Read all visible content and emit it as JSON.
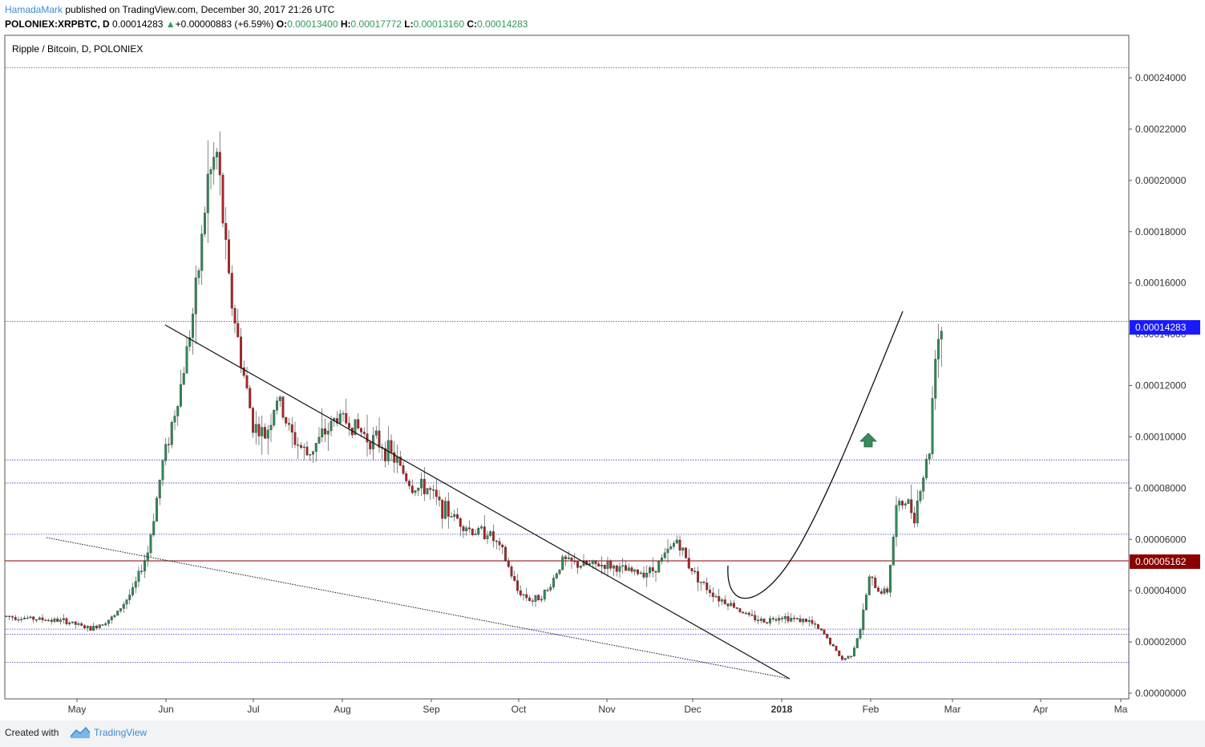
{
  "header": {
    "author": "HamadaMark",
    "published": "published on TradingView.com, December 30, 2017 21:26 UTC",
    "symbol": "POLONIEX:XRPBTC, D",
    "last": "0.00014283",
    "change_arrow": "▲",
    "change": "+0.00000883 (+6.59%)",
    "o_label": "O:",
    "o_value": "0.00013400",
    "h_label": "H:",
    "h_value": "0.00017772",
    "l_label": "L:",
    "l_value": "0.00013160",
    "c_label": "C:",
    "c_value": "0.00014283"
  },
  "footer": {
    "created_with": "Created with",
    "brand": "TradingView",
    "logo_icon": "tradingview-logo-icon"
  },
  "colors": {
    "up_candle": "#2e8b57",
    "down_candle": "#b22222",
    "horizontal_line": "#3b3bb3",
    "resistance_line": "#8b0000",
    "current_price_badge": "#1a1aff",
    "support_badge": "#8b0000",
    "arrow": "#3a8a5a",
    "author": "#3d8bd4"
  },
  "chart_data": {
    "type": "candlestick",
    "title": "Ripple / Bitcoin, D, POLONIEX",
    "x_labels": [
      "May",
      "Jun",
      "Jul",
      "Aug",
      "Sep",
      "Oct",
      "Nov",
      "Dec",
      "2018",
      "Feb",
      "Mar",
      "Apr",
      "Ma"
    ],
    "y_ticks": [
      "0.00024000",
      "0.00022000",
      "0.00020000",
      "0.00018000",
      "0.00016000",
      "0.00014000",
      "0.00012000",
      "0.00010000",
      "0.00008000",
      "0.00006000",
      "0.00004000",
      "0.00002000",
      "0.00000000"
    ],
    "ylim": [
      0,
      0.000245
    ],
    "current_price_label": "0.00014283",
    "support_price_label": "0.00005162",
    "horizontal_levels": [
      0.000244,
      0.000145,
      9.1e-05,
      8.2e-05,
      6.2e-05,
      2.5e-05,
      2.3e-05,
      1.2e-05
    ],
    "resistance_level": 5.162e-05,
    "price_path": [
      [
        0,
        3e-05
      ],
      [
        10,
        2.9e-05
      ],
      [
        20,
        2.8e-05
      ],
      [
        28,
        2.5e-05
      ],
      [
        36,
        3e-05
      ],
      [
        42,
        4e-05
      ],
      [
        47,
        5.5e-05
      ],
      [
        52,
        9e-05
      ],
      [
        58,
        0.00012
      ],
      [
        63,
        0.000155
      ],
      [
        67,
        0.0002
      ],
      [
        70,
        0.00021
      ],
      [
        74,
        0.00016
      ],
      [
        78,
        0.00013
      ],
      [
        82,
        0.000105
      ],
      [
        86,
        0.0001
      ],
      [
        90,
        0.000115
      ],
      [
        95,
        0.0001
      ],
      [
        100,
        9.3e-05
      ],
      [
        105,
        0.0001
      ],
      [
        110,
        0.000108
      ],
      [
        115,
        0.000105
      ],
      [
        120,
        0.0001
      ],
      [
        125,
        9.7e-05
      ],
      [
        130,
        9e-05
      ],
      [
        135,
        8e-05
      ],
      [
        140,
        8e-05
      ],
      [
        145,
        7.2e-05
      ],
      [
        150,
        6.8e-05
      ],
      [
        155,
        6.3e-05
      ],
      [
        160,
        6.3e-05
      ],
      [
        165,
        5.5e-05
      ],
      [
        170,
        4e-05
      ],
      [
        175,
        3.6e-05
      ],
      [
        180,
        4e-05
      ],
      [
        185,
        5.2e-05
      ],
      [
        190,
        5e-05
      ],
      [
        195,
        5e-05
      ],
      [
        200,
        5e-05
      ],
      [
        205,
        4.8e-05
      ],
      [
        210,
        4.7e-05
      ],
      [
        215,
        4.8e-05
      ],
      [
        220,
        5.5e-05
      ],
      [
        223,
        6e-05
      ],
      [
        227,
        5e-05
      ],
      [
        232,
        4.2e-05
      ],
      [
        237,
        3.7e-05
      ],
      [
        242,
        3.4e-05
      ],
      [
        247,
        3e-05
      ],
      [
        252,
        2.8e-05
      ],
      [
        257,
        3e-05
      ],
      [
        262,
        2.9e-05
      ],
      [
        267,
        2.8e-05
      ],
      [
        272,
        2.3e-05
      ],
      [
        275,
        1.8e-05
      ],
      [
        278,
        1.3e-05
      ],
      [
        281,
        1.5e-05
      ],
      [
        284,
        2.5e-05
      ],
      [
        287,
        4.5e-05
      ],
      [
        290,
        4e-05
      ],
      [
        293,
        4e-05
      ],
      [
        296,
        7.2e-05
      ],
      [
        299,
        7.5e-05
      ],
      [
        302,
        7e-05
      ],
      [
        305,
        8.5e-05
      ],
      [
        307,
        9.5e-05
      ],
      [
        309,
        0.000135
      ],
      [
        311,
        0.000143
      ]
    ],
    "annotations": [
      {
        "type": "trendline",
        "label": "falling wedge upper",
        "from": [
          99,
          0.000143
        ],
        "to": [
          325,
          5e-06
        ]
      },
      {
        "type": "trendline",
        "label": "falling wedge lower",
        "from": [
          20,
          6e-05
        ],
        "to": [
          325,
          5e-06
        ]
      },
      {
        "type": "curve",
        "label": "projected rally"
      },
      {
        "type": "arrow",
        "direction": "up"
      }
    ]
  }
}
